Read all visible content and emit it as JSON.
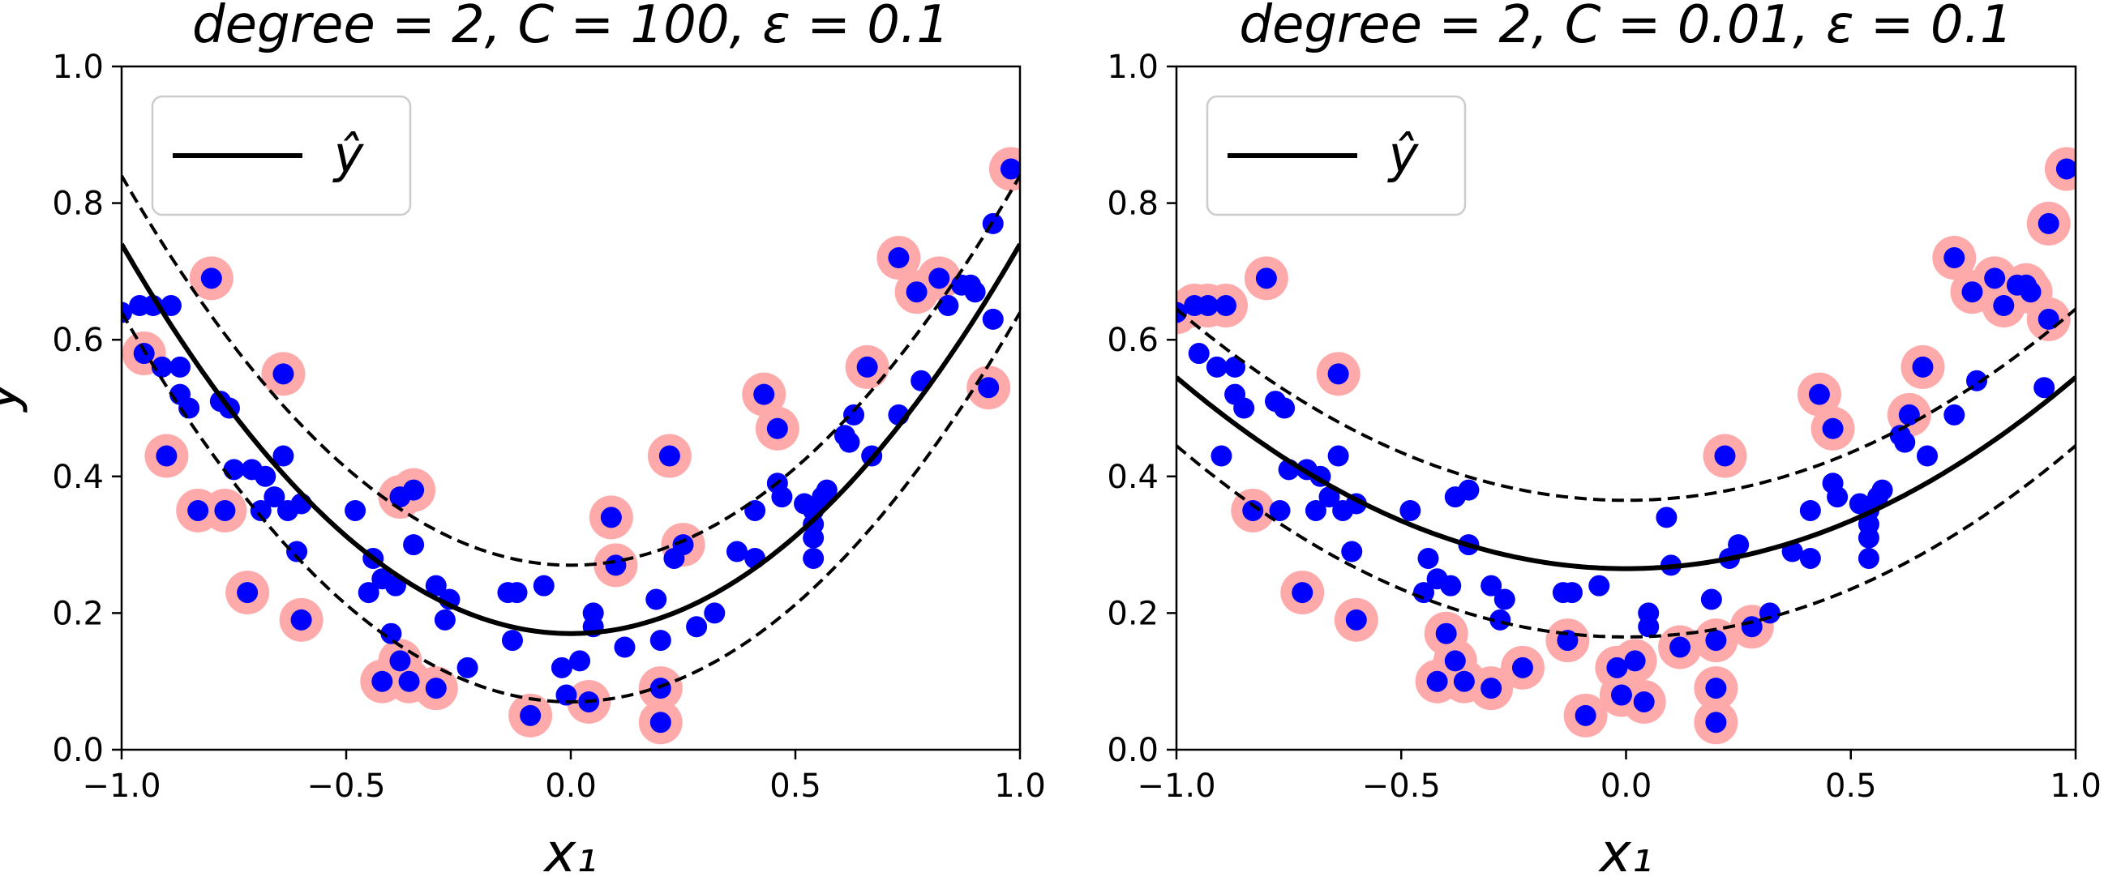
{
  "chart_data": [
    {
      "type": "scatter",
      "title": "degree = 2, C = 100, ε = 0.1",
      "xlabel": "x₁",
      "ylabel": "y",
      "xlim": [
        -1.0,
        1.0
      ],
      "ylim": [
        0.0,
        1.0
      ],
      "xticks": [
        "−1.0",
        "−0.5",
        "0.0",
        "0.5",
        "1.0"
      ],
      "yticks": [
        "0.0",
        "0.2",
        "0.4",
        "0.6",
        "0.8",
        "1.0"
      ],
      "legend": {
        "label": "ŷ",
        "position": "upper-left"
      },
      "prediction": {
        "a": 0.57,
        "b": 0.0,
        "c": 0.17,
        "epsilon": 0.1
      },
      "colors": {
        "points": "#0000ff",
        "support_vectors": "#ffaaaa",
        "line": "#000000"
      },
      "points": [
        [
          -1.0,
          0.64
        ],
        [
          -0.96,
          0.65
        ],
        [
          -0.93,
          0.65
        ],
        [
          -0.89,
          0.65
        ],
        [
          -0.95,
          0.58
        ],
        [
          -0.91,
          0.56
        ],
        [
          -0.87,
          0.56
        ],
        [
          -0.87,
          0.52
        ],
        [
          -0.85,
          0.5
        ],
        [
          -0.9,
          0.43
        ],
        [
          -0.8,
          0.69
        ],
        [
          -0.78,
          0.51
        ],
        [
          -0.76,
          0.5
        ],
        [
          -0.75,
          0.41
        ],
        [
          -0.71,
          0.41
        ],
        [
          -0.68,
          0.4
        ],
        [
          -0.66,
          0.37
        ],
        [
          -0.69,
          0.35
        ],
        [
          -0.63,
          0.35
        ],
        [
          -0.64,
          0.43
        ],
        [
          -0.64,
          0.55
        ],
        [
          -0.6,
          0.36
        ],
        [
          -0.61,
          0.29
        ],
        [
          -0.83,
          0.35
        ],
        [
          -0.77,
          0.35
        ],
        [
          -0.72,
          0.23
        ],
        [
          -0.6,
          0.19
        ],
        [
          -0.48,
          0.35
        ],
        [
          -0.45,
          0.23
        ],
        [
          -0.44,
          0.28
        ],
        [
          -0.42,
          0.25
        ],
        [
          -0.39,
          0.24
        ],
        [
          -0.38,
          0.37
        ],
        [
          -0.35,
          0.38
        ],
        [
          -0.35,
          0.3
        ],
        [
          -0.3,
          0.24
        ],
        [
          -0.28,
          0.19
        ],
        [
          -0.27,
          0.22
        ],
        [
          -0.4,
          0.17
        ],
        [
          -0.38,
          0.13
        ],
        [
          -0.42,
          0.1
        ],
        [
          -0.36,
          0.1
        ],
        [
          -0.3,
          0.09
        ],
        [
          -0.23,
          0.12
        ],
        [
          -0.14,
          0.23
        ],
        [
          -0.12,
          0.23
        ],
        [
          -0.13,
          0.16
        ],
        [
          -0.06,
          0.24
        ],
        [
          -0.02,
          0.12
        ],
        [
          0.02,
          0.13
        ],
        [
          0.05,
          0.2
        ],
        [
          0.05,
          0.18
        ],
        [
          0.09,
          0.34
        ],
        [
          0.1,
          0.27
        ],
        [
          0.12,
          0.15
        ],
        [
          -0.09,
          0.05
        ],
        [
          -0.01,
          0.08
        ],
        [
          0.04,
          0.07
        ],
        [
          0.19,
          0.22
        ],
        [
          0.2,
          0.16
        ],
        [
          0.22,
          0.43
        ],
        [
          0.23,
          0.28
        ],
        [
          0.25,
          0.3
        ],
        [
          0.28,
          0.18
        ],
        [
          0.32,
          0.2
        ],
        [
          0.2,
          0.09
        ],
        [
          0.2,
          0.04
        ],
        [
          0.37,
          0.29
        ],
        [
          0.41,
          0.28
        ],
        [
          0.41,
          0.35
        ],
        [
          0.43,
          0.52
        ],
        [
          0.46,
          0.47
        ],
        [
          0.46,
          0.39
        ],
        [
          0.47,
          0.37
        ],
        [
          0.52,
          0.36
        ],
        [
          0.54,
          0.35
        ],
        [
          0.54,
          0.33
        ],
        [
          0.54,
          0.31
        ],
        [
          0.54,
          0.28
        ],
        [
          0.56,
          0.37
        ],
        [
          0.57,
          0.38
        ],
        [
          0.61,
          0.46
        ],
        [
          0.62,
          0.45
        ],
        [
          0.63,
          0.49
        ],
        [
          0.66,
          0.56
        ],
        [
          0.67,
          0.43
        ],
        [
          0.73,
          0.49
        ],
        [
          0.73,
          0.72
        ],
        [
          0.77,
          0.67
        ],
        [
          0.78,
          0.54
        ],
        [
          0.82,
          0.69
        ],
        [
          0.84,
          0.65
        ],
        [
          0.87,
          0.68
        ],
        [
          0.89,
          0.68
        ],
        [
          0.9,
          0.67
        ],
        [
          0.93,
          0.53
        ],
        [
          0.94,
          0.63
        ],
        [
          0.94,
          0.77
        ],
        [
          0.98,
          0.85
        ]
      ],
      "support_vectors": [
        [
          -0.95,
          0.58
        ],
        [
          -0.9,
          0.43
        ],
        [
          -0.8,
          0.69
        ],
        [
          -0.83,
          0.35
        ],
        [
          -0.77,
          0.35
        ],
        [
          -0.72,
          0.23
        ],
        [
          -0.64,
          0.55
        ],
        [
          -0.6,
          0.19
        ],
        [
          -0.38,
          0.37
        ],
        [
          -0.35,
          0.38
        ],
        [
          -0.42,
          0.1
        ],
        [
          -0.38,
          0.13
        ],
        [
          -0.36,
          0.1
        ],
        [
          -0.3,
          0.09
        ],
        [
          -0.09,
          0.05
        ],
        [
          0.04,
          0.07
        ],
        [
          0.09,
          0.34
        ],
        [
          0.1,
          0.27
        ],
        [
          0.22,
          0.43
        ],
        [
          0.25,
          0.3
        ],
        [
          0.2,
          0.09
        ],
        [
          0.2,
          0.04
        ],
        [
          0.43,
          0.52
        ],
        [
          0.46,
          0.47
        ],
        [
          0.66,
          0.56
        ],
        [
          0.73,
          0.72
        ],
        [
          0.77,
          0.67
        ],
        [
          0.82,
          0.69
        ],
        [
          0.93,
          0.53
        ],
        [
          0.98,
          0.85
        ]
      ]
    },
    {
      "type": "scatter",
      "title": "degree = 2, C = 0.01, ε = 0.1",
      "xlabel": "x₁",
      "ylabel": "",
      "xlim": [
        -1.0,
        1.0
      ],
      "ylim": [
        0.0,
        1.0
      ],
      "xticks": [
        "−1.0",
        "−0.5",
        "0.0",
        "0.5",
        "1.0"
      ],
      "yticks": [
        "0.0",
        "0.2",
        "0.4",
        "0.6",
        "0.8",
        "1.0"
      ],
      "legend": {
        "label": "ŷ",
        "position": "upper-left"
      },
      "prediction": {
        "a": 0.28,
        "b": 0.0,
        "c": 0.265,
        "epsilon": 0.1
      },
      "colors": {
        "points": "#0000ff",
        "support_vectors": "#ffaaaa",
        "line": "#000000"
      },
      "points": [
        [
          -1.0,
          0.64
        ],
        [
          -0.96,
          0.65
        ],
        [
          -0.93,
          0.65
        ],
        [
          -0.89,
          0.65
        ],
        [
          -0.95,
          0.58
        ],
        [
          -0.91,
          0.56
        ],
        [
          -0.87,
          0.56
        ],
        [
          -0.87,
          0.52
        ],
        [
          -0.85,
          0.5
        ],
        [
          -0.9,
          0.43
        ],
        [
          -0.8,
          0.69
        ],
        [
          -0.78,
          0.51
        ],
        [
          -0.76,
          0.5
        ],
        [
          -0.75,
          0.41
        ],
        [
          -0.71,
          0.41
        ],
        [
          -0.68,
          0.4
        ],
        [
          -0.66,
          0.37
        ],
        [
          -0.69,
          0.35
        ],
        [
          -0.63,
          0.35
        ],
        [
          -0.64,
          0.43
        ],
        [
          -0.64,
          0.55
        ],
        [
          -0.6,
          0.36
        ],
        [
          -0.61,
          0.29
        ],
        [
          -0.83,
          0.35
        ],
        [
          -0.77,
          0.35
        ],
        [
          -0.72,
          0.23
        ],
        [
          -0.6,
          0.19
        ],
        [
          -0.48,
          0.35
        ],
        [
          -0.45,
          0.23
        ],
        [
          -0.44,
          0.28
        ],
        [
          -0.42,
          0.25
        ],
        [
          -0.39,
          0.24
        ],
        [
          -0.38,
          0.37
        ],
        [
          -0.35,
          0.38
        ],
        [
          -0.35,
          0.3
        ],
        [
          -0.3,
          0.24
        ],
        [
          -0.28,
          0.19
        ],
        [
          -0.27,
          0.22
        ],
        [
          -0.4,
          0.17
        ],
        [
          -0.38,
          0.13
        ],
        [
          -0.42,
          0.1
        ],
        [
          -0.36,
          0.1
        ],
        [
          -0.3,
          0.09
        ],
        [
          -0.23,
          0.12
        ],
        [
          -0.14,
          0.23
        ],
        [
          -0.12,
          0.23
        ],
        [
          -0.13,
          0.16
        ],
        [
          -0.06,
          0.24
        ],
        [
          -0.02,
          0.12
        ],
        [
          0.02,
          0.13
        ],
        [
          0.05,
          0.2
        ],
        [
          0.05,
          0.18
        ],
        [
          0.09,
          0.34
        ],
        [
          0.1,
          0.27
        ],
        [
          0.12,
          0.15
        ],
        [
          -0.09,
          0.05
        ],
        [
          -0.01,
          0.08
        ],
        [
          0.04,
          0.07
        ],
        [
          0.19,
          0.22
        ],
        [
          0.2,
          0.16
        ],
        [
          0.22,
          0.43
        ],
        [
          0.23,
          0.28
        ],
        [
          0.25,
          0.3
        ],
        [
          0.28,
          0.18
        ],
        [
          0.32,
          0.2
        ],
        [
          0.2,
          0.09
        ],
        [
          0.2,
          0.04
        ],
        [
          0.37,
          0.29
        ],
        [
          0.41,
          0.28
        ],
        [
          0.41,
          0.35
        ],
        [
          0.43,
          0.52
        ],
        [
          0.46,
          0.47
        ],
        [
          0.46,
          0.39
        ],
        [
          0.47,
          0.37
        ],
        [
          0.52,
          0.36
        ],
        [
          0.54,
          0.35
        ],
        [
          0.54,
          0.33
        ],
        [
          0.54,
          0.31
        ],
        [
          0.54,
          0.28
        ],
        [
          0.56,
          0.37
        ],
        [
          0.57,
          0.38
        ],
        [
          0.61,
          0.46
        ],
        [
          0.62,
          0.45
        ],
        [
          0.63,
          0.49
        ],
        [
          0.66,
          0.56
        ],
        [
          0.67,
          0.43
        ],
        [
          0.73,
          0.49
        ],
        [
          0.73,
          0.72
        ],
        [
          0.77,
          0.67
        ],
        [
          0.78,
          0.54
        ],
        [
          0.82,
          0.69
        ],
        [
          0.84,
          0.65
        ],
        [
          0.87,
          0.68
        ],
        [
          0.89,
          0.68
        ],
        [
          0.9,
          0.67
        ],
        [
          0.93,
          0.53
        ],
        [
          0.94,
          0.63
        ],
        [
          0.94,
          0.77
        ],
        [
          0.98,
          0.85
        ]
      ],
      "support_vectors": [
        [
          -1.0,
          0.64
        ],
        [
          -0.96,
          0.65
        ],
        [
          -0.93,
          0.65
        ],
        [
          -0.89,
          0.65
        ],
        [
          -0.8,
          0.69
        ],
        [
          -0.83,
          0.35
        ],
        [
          -0.72,
          0.23
        ],
        [
          -0.64,
          0.55
        ],
        [
          -0.6,
          0.19
        ],
        [
          -0.4,
          0.17
        ],
        [
          -0.42,
          0.1
        ],
        [
          -0.38,
          0.13
        ],
        [
          -0.36,
          0.1
        ],
        [
          -0.3,
          0.09
        ],
        [
          -0.23,
          0.12
        ],
        [
          -0.13,
          0.16
        ],
        [
          -0.09,
          0.05
        ],
        [
          -0.02,
          0.12
        ],
        [
          0.02,
          0.13
        ],
        [
          -0.01,
          0.08
        ],
        [
          0.04,
          0.07
        ],
        [
          0.12,
          0.15
        ],
        [
          0.2,
          0.16
        ],
        [
          0.22,
          0.43
        ],
        [
          0.28,
          0.18
        ],
        [
          0.2,
          0.09
        ],
        [
          0.2,
          0.04
        ],
        [
          0.43,
          0.52
        ],
        [
          0.46,
          0.47
        ],
        [
          0.63,
          0.49
        ],
        [
          0.66,
          0.56
        ],
        [
          0.73,
          0.72
        ],
        [
          0.77,
          0.67
        ],
        [
          0.82,
          0.69
        ],
        [
          0.84,
          0.65
        ],
        [
          0.89,
          0.68
        ],
        [
          0.9,
          0.67
        ],
        [
          0.94,
          0.63
        ],
        [
          0.94,
          0.77
        ],
        [
          0.98,
          0.85
        ]
      ]
    }
  ]
}
